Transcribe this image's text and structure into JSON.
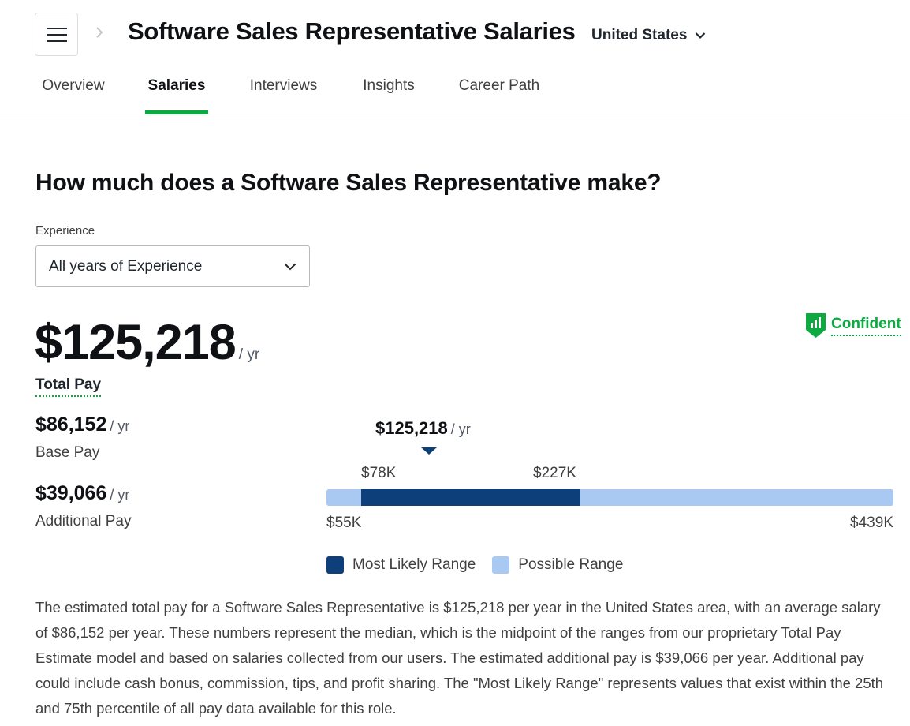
{
  "header": {
    "menu_icon": "hamburger-menu-icon",
    "breadcrumb_icon": "chevron-right-icon",
    "title": "Software Sales Representative Salaries",
    "location": "United States",
    "location_icon": "chevron-down-icon"
  },
  "tabs": [
    {
      "label": "Overview",
      "active": false
    },
    {
      "label": "Salaries",
      "active": true
    },
    {
      "label": "Interviews",
      "active": false
    },
    {
      "label": "Insights",
      "active": false
    },
    {
      "label": "Career Path",
      "active": false
    }
  ],
  "colors": {
    "accent_green": "#0caa41",
    "most_likely": "#0d3f7a",
    "possible": "#a9c9f2"
  },
  "main": {
    "question": "How much does a Software Sales Representative make?",
    "experience_label": "Experience",
    "experience_value": "All years of Experience",
    "total_pay": {
      "amount": "$125,218",
      "unit": "/ yr",
      "label": "Total Pay"
    },
    "confidence": {
      "label": "Confident",
      "icon": "confidence-shield-chart-icon"
    },
    "base_pay": {
      "amount": "$86,152",
      "unit": "/ yr",
      "label": "Base Pay"
    },
    "additional_pay": {
      "amount": "$39,066",
      "unit": "/ yr",
      "label": "Additional Pay"
    }
  },
  "pay_range": {
    "median_label": "$125,218",
    "median_unit": "/ yr",
    "median_value": 125218,
    "min_value": 55000,
    "max_value": 439000,
    "likely_low_value": 78000,
    "likely_high_value": 227000,
    "min_label": "$55K",
    "max_label": "$439K",
    "likely_low_label": "$78K",
    "likely_high_label": "$227K",
    "legend": [
      {
        "label": "Most Likely Range"
      },
      {
        "label": "Possible Range"
      }
    ]
  },
  "description": "The estimated total pay for a Software Sales Representative is $125,218 per year in the United States area, with an average salary of $86,152 per year. These numbers represent the median, which is the midpoint of the ranges from our proprietary Total Pay Estimate model and based on salaries collected from our users. The estimated additional pay is $39,066 per year. Additional pay could include cash bonus, commission, tips, and profit sharing. The \"Most Likely Range\" represents values that exist within the 25th and 75th percentile of all pay data available for this role."
}
